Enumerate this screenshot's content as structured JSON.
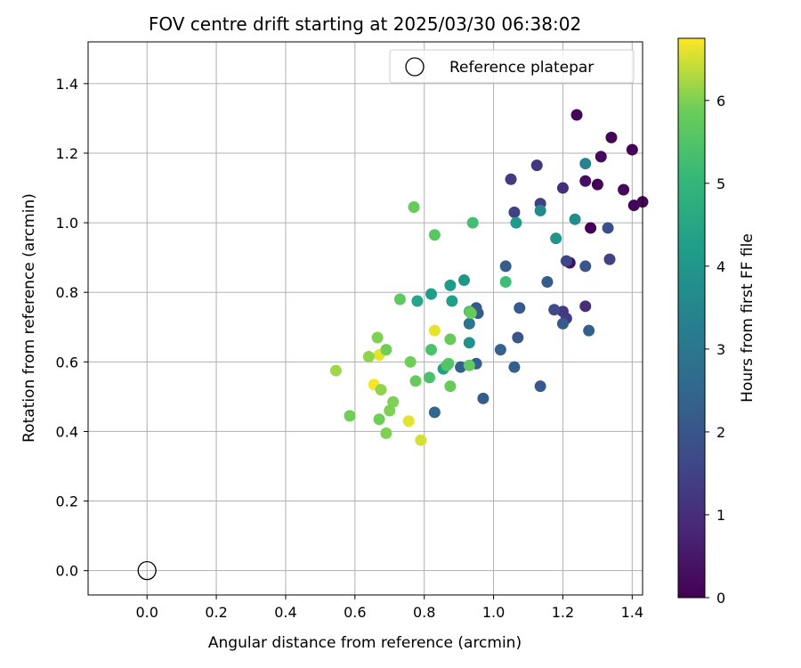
{
  "chart_data": {
    "type": "scatter",
    "title": "FOV centre drift starting at 2025/03/30 06:38:02",
    "xlabel": "Angular distance from reference (arcmin)",
    "ylabel": "Rotation from reference (arcmin)",
    "xlim": [
      -0.17,
      1.43
    ],
    "ylim": [
      -0.07,
      1.52
    ],
    "xticks": [
      "0.0",
      "0.2",
      "0.4",
      "0.6",
      "0.8",
      "1.0",
      "1.2",
      "1.4"
    ],
    "yticks": [
      "0.0",
      "0.2",
      "0.4",
      "0.6",
      "0.8",
      "1.0",
      "1.2",
      "1.4"
    ],
    "grid": true,
    "legend": {
      "placement": "top-right",
      "entries": [
        {
          "label": "Reference platepar",
          "marker": "open-circle",
          "x": 0.0,
          "y": 0.0
        }
      ]
    },
    "colorbar": {
      "label": "Hours from first FF file",
      "range": [
        0,
        6.75
      ],
      "colormap": "viridis",
      "ticks": [
        "0",
        "1",
        "2",
        "3",
        "4",
        "5",
        "6"
      ]
    },
    "series": [
      {
        "points": [
          {
            "x": 1.24,
            "y": 1.31,
            "c": 0.1
          },
          {
            "x": 1.34,
            "y": 1.245,
            "c": 0.1
          },
          {
            "x": 1.4,
            "y": 1.21,
            "c": 0.05
          },
          {
            "x": 1.31,
            "y": 1.19,
            "c": 0.2
          },
          {
            "x": 1.265,
            "y": 1.12,
            "c": 0.3
          },
          {
            "x": 1.3,
            "y": 1.11,
            "c": 0.05
          },
          {
            "x": 1.375,
            "y": 1.095,
            "c": 0.15
          },
          {
            "x": 1.405,
            "y": 1.05,
            "c": 0.1
          },
          {
            "x": 1.43,
            "y": 1.06,
            "c": 0.1
          },
          {
            "x": 1.28,
            "y": 0.985,
            "c": 0.05
          },
          {
            "x": 1.22,
            "y": 0.885,
            "c": 0.25
          },
          {
            "x": 1.125,
            "y": 1.165,
            "c": 1.2
          },
          {
            "x": 1.05,
            "y": 1.125,
            "c": 1.3
          },
          {
            "x": 1.2,
            "y": 1.1,
            "c": 1.0
          },
          {
            "x": 1.135,
            "y": 1.055,
            "c": 1.4
          },
          {
            "x": 1.06,
            "y": 1.03,
            "c": 1.5
          },
          {
            "x": 1.33,
            "y": 0.985,
            "c": 1.8
          },
          {
            "x": 1.21,
            "y": 0.89,
            "c": 1.6
          },
          {
            "x": 1.335,
            "y": 0.895,
            "c": 1.5
          },
          {
            "x": 1.265,
            "y": 0.875,
            "c": 2.0
          },
          {
            "x": 1.265,
            "y": 0.76,
            "c": 1.0
          },
          {
            "x": 1.2,
            "y": 0.745,
            "c": 1.3
          },
          {
            "x": 1.21,
            "y": 0.725,
            "c": 1.3
          },
          {
            "x": 1.175,
            "y": 0.75,
            "c": 1.7
          },
          {
            "x": 1.2,
            "y": 0.71,
            "c": 2.1
          },
          {
            "x": 1.275,
            "y": 0.69,
            "c": 2.3
          },
          {
            "x": 1.035,
            "y": 0.875,
            "c": 2.2
          },
          {
            "x": 1.155,
            "y": 0.83,
            "c": 2.2
          },
          {
            "x": 1.075,
            "y": 0.755,
            "c": 2.1
          },
          {
            "x": 1.07,
            "y": 0.67,
            "c": 2.0
          },
          {
            "x": 1.02,
            "y": 0.635,
            "c": 2.4
          },
          {
            "x": 1.06,
            "y": 0.585,
            "c": 2.3
          },
          {
            "x": 1.135,
            "y": 0.53,
            "c": 2.1
          },
          {
            "x": 0.97,
            "y": 0.495,
            "c": 2.2
          },
          {
            "x": 0.95,
            "y": 0.755,
            "c": 2.1
          },
          {
            "x": 0.955,
            "y": 0.74,
            "c": 2.2
          },
          {
            "x": 0.95,
            "y": 0.595,
            "c": 2.3
          },
          {
            "x": 0.905,
            "y": 0.585,
            "c": 2.3
          },
          {
            "x": 0.83,
            "y": 0.455,
            "c": 2.5
          },
          {
            "x": 0.93,
            "y": 0.71,
            "c": 3.0
          },
          {
            "x": 1.265,
            "y": 1.17,
            "c": 3.4
          },
          {
            "x": 1.135,
            "y": 1.035,
            "c": 3.6
          },
          {
            "x": 1.235,
            "y": 1.01,
            "c": 3.7
          },
          {
            "x": 1.065,
            "y": 1.0,
            "c": 4.1
          },
          {
            "x": 1.18,
            "y": 0.955,
            "c": 3.9
          },
          {
            "x": 0.915,
            "y": 0.835,
            "c": 4.0
          },
          {
            "x": 0.82,
            "y": 0.795,
            "c": 4.2
          },
          {
            "x": 0.875,
            "y": 0.82,
            "c": 4.1
          },
          {
            "x": 0.88,
            "y": 0.775,
            "c": 4.3
          },
          {
            "x": 0.93,
            "y": 0.655,
            "c": 3.8
          },
          {
            "x": 0.855,
            "y": 0.58,
            "c": 4.3
          },
          {
            "x": 0.78,
            "y": 0.775,
            "c": 4.5
          },
          {
            "x": 1.035,
            "y": 0.83,
            "c": 5.2
          },
          {
            "x": 0.94,
            "y": 1.0,
            "c": 5.3
          },
          {
            "x": 0.83,
            "y": 0.965,
            "c": 5.6
          },
          {
            "x": 0.77,
            "y": 1.045,
            "c": 5.8
          },
          {
            "x": 0.93,
            "y": 0.745,
            "c": 5.4
          },
          {
            "x": 0.935,
            "y": 0.74,
            "c": 5.8
          },
          {
            "x": 0.875,
            "y": 0.665,
            "c": 5.8
          },
          {
            "x": 0.82,
            "y": 0.635,
            "c": 5.4
          },
          {
            "x": 0.87,
            "y": 0.595,
            "c": 5.6
          },
          {
            "x": 0.93,
            "y": 0.59,
            "c": 5.7
          },
          {
            "x": 0.865,
            "y": 0.59,
            "c": 5.5
          },
          {
            "x": 0.815,
            "y": 0.555,
            "c": 5.4
          },
          {
            "x": 0.875,
            "y": 0.53,
            "c": 5.8
          },
          {
            "x": 0.775,
            "y": 0.545,
            "c": 5.8
          },
          {
            "x": 0.73,
            "y": 0.78,
            "c": 5.7
          },
          {
            "x": 0.76,
            "y": 0.6,
            "c": 5.9
          },
          {
            "x": 0.83,
            "y": 0.69,
            "c": 6.6
          },
          {
            "x": 0.67,
            "y": 0.62,
            "c": 6.6
          },
          {
            "x": 0.665,
            "y": 0.67,
            "c": 6.0
          },
          {
            "x": 0.69,
            "y": 0.635,
            "c": 5.9
          },
          {
            "x": 0.64,
            "y": 0.615,
            "c": 6.1
          },
          {
            "x": 0.545,
            "y": 0.575,
            "c": 6.2
          },
          {
            "x": 0.655,
            "y": 0.535,
            "c": 6.7
          },
          {
            "x": 0.675,
            "y": 0.52,
            "c": 6.1
          },
          {
            "x": 0.71,
            "y": 0.485,
            "c": 6.0
          },
          {
            "x": 0.7,
            "y": 0.46,
            "c": 6.0
          },
          {
            "x": 0.585,
            "y": 0.445,
            "c": 5.9
          },
          {
            "x": 0.67,
            "y": 0.435,
            "c": 5.9
          },
          {
            "x": 0.755,
            "y": 0.43,
            "c": 6.6
          },
          {
            "x": 0.69,
            "y": 0.395,
            "c": 6.0
          },
          {
            "x": 0.79,
            "y": 0.375,
            "c": 6.5
          }
        ]
      }
    ]
  }
}
